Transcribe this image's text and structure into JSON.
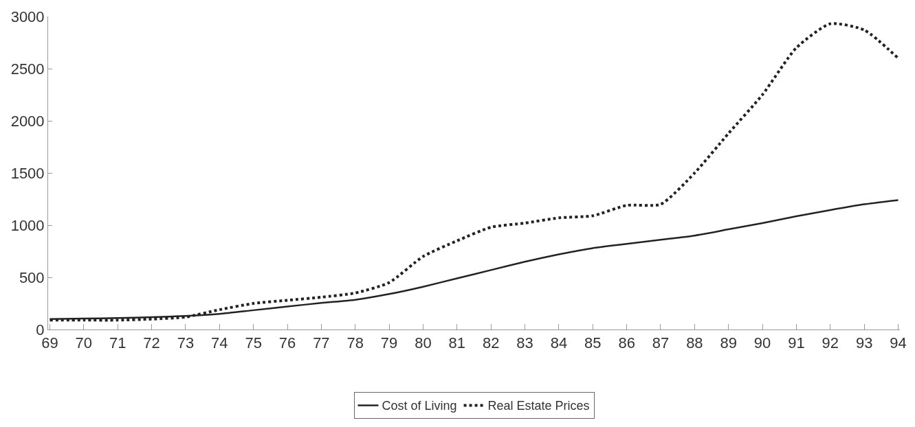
{
  "chart_data": {
    "type": "line",
    "categories": [
      "69",
      "70",
      "71",
      "72",
      "73",
      "74",
      "75",
      "76",
      "77",
      "78",
      "79",
      "80",
      "81",
      "82",
      "83",
      "84",
      "85",
      "86",
      "87",
      "88",
      "89",
      "90",
      "91",
      "92",
      "93",
      "94"
    ],
    "series": [
      {
        "name": "Cost of Living",
        "color": "#222222",
        "line_style": "solid",
        "values": [
          100,
          105,
          110,
          118,
          130,
          150,
          185,
          220,
          255,
          285,
          340,
          410,
          490,
          570,
          650,
          720,
          780,
          820,
          860,
          900,
          960,
          1020,
          1085,
          1145,
          1200,
          1240
        ]
      },
      {
        "name": "Real Estate Prices",
        "color": "#222222",
        "line_style": "dotted",
        "values": [
          90,
          90,
          90,
          100,
          120,
          190,
          250,
          280,
          310,
          350,
          450,
          700,
          850,
          980,
          1020,
          1070,
          1090,
          1190,
          1200,
          1500,
          1880,
          2250,
          2700,
          2930,
          2870,
          2600
        ]
      }
    ],
    "ylim": [
      0,
      3000
    ],
    "yticks": [
      0,
      500,
      1000,
      1500,
      2000,
      2500,
      3000
    ],
    "grid": false,
    "legend": "bottom",
    "marker": "none"
  }
}
